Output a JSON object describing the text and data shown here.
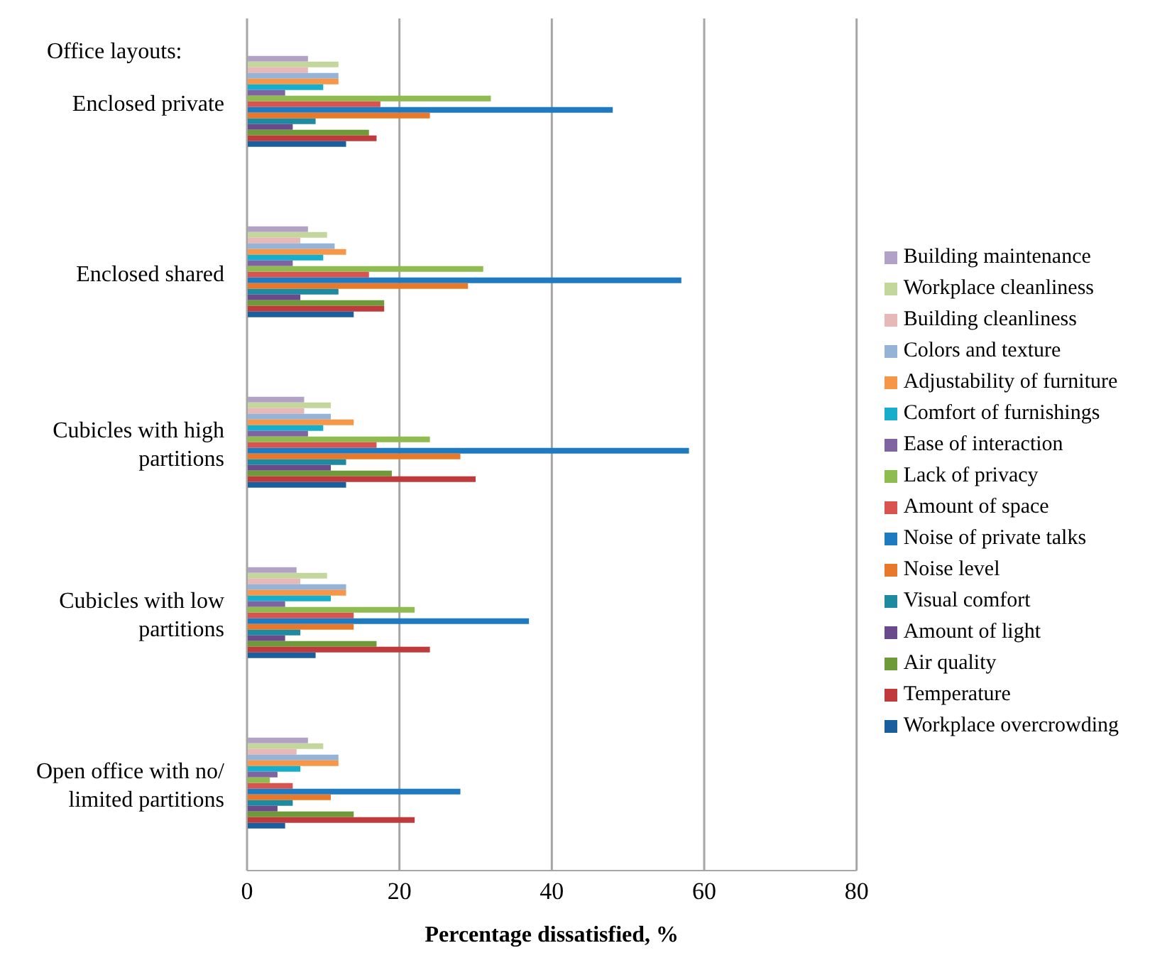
{
  "chart_data": {
    "type": "bar",
    "orientation": "horizontal",
    "xlabel": "Percentage dissatisfied, %",
    "annotations": [
      "Office layouts:"
    ],
    "categories": [
      "Enclosed private",
      "Enclosed shared",
      "Cubicles with high partitions",
      "Cubicles with low partitions",
      "Open office with no/ limited partitions"
    ],
    "series": [
      {
        "name": "Building maintenance",
        "color": "#b3a2c7",
        "values": [
          8,
          8,
          7.5,
          6.5,
          8
        ]
      },
      {
        "name": "Workplace cleanliness",
        "color": "#c3d69b",
        "values": [
          12,
          10.5,
          11,
          10.5,
          10
        ]
      },
      {
        "name": "Building cleanliness",
        "color": "#e6b9b8",
        "values": [
          8,
          7,
          7.5,
          7,
          6.5
        ]
      },
      {
        "name": "Colors and texture",
        "color": "#95b3d7",
        "values": [
          12,
          11.5,
          11,
          13,
          12
        ]
      },
      {
        "name": "Adjustability of furniture",
        "color": "#f79646",
        "values": [
          12,
          13,
          14,
          13,
          12
        ]
      },
      {
        "name": "Comfort of furnishings",
        "color": "#17aecb",
        "values": [
          10,
          10,
          10,
          11,
          7
        ]
      },
      {
        "name": "Ease of interaction",
        "color": "#8064a2",
        "values": [
          5,
          6,
          8,
          5,
          4
        ]
      },
      {
        "name": "Lack of privacy",
        "color": "#8fbc4e",
        "values": [
          32,
          31,
          24,
          22,
          3
        ]
      },
      {
        "name": "Amount of space",
        "color": "#d9534f",
        "values": [
          17.5,
          16,
          17,
          14,
          6
        ]
      },
      {
        "name": "Noise of private talks",
        "color": "#1f7bc1",
        "values": [
          48,
          57,
          58,
          37,
          28
        ]
      },
      {
        "name": "Noise level",
        "color": "#e8782a",
        "values": [
          24,
          29,
          28,
          14,
          11
        ]
      },
      {
        "name": "Visual comfort",
        "color": "#1d8aa0",
        "values": [
          9,
          12,
          13,
          7,
          6
        ]
      },
      {
        "name": "Amount of light",
        "color": "#6a4a8a",
        "values": [
          6,
          7,
          11,
          5,
          4
        ]
      },
      {
        "name": "Air quality",
        "color": "#6f9a3a",
        "values": [
          16,
          18,
          19,
          17,
          14
        ]
      },
      {
        "name": "Temperature",
        "color": "#c0393b",
        "values": [
          17,
          18,
          30,
          24,
          22
        ]
      },
      {
        "name": "Workplace overcrowding",
        "color": "#1b5e9e",
        "values": [
          13,
          14,
          13,
          9,
          5
        ]
      }
    ],
    "xlim": [
      0,
      80
    ],
    "xticks": [
      0,
      20,
      40,
      60,
      80
    ],
    "grid": "x",
    "legend": "right"
  }
}
